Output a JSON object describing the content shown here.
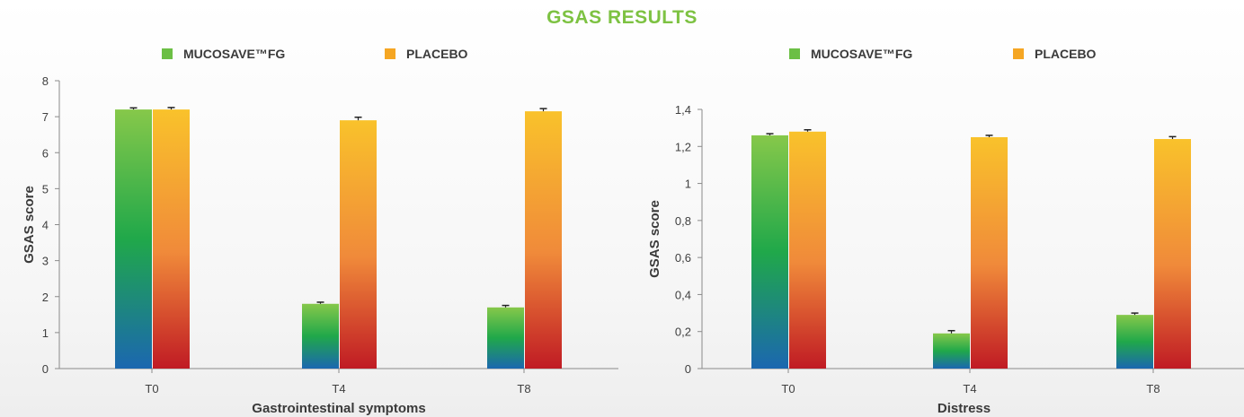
{
  "title": "GSAS RESULTS",
  "colors": {
    "title": "#7dc242",
    "mucosave_gradient": [
      "#86c84a",
      "#20a84a",
      "#1b67b0"
    ],
    "placebo_gradient": [
      "#f9c22b",
      "#f08a3a",
      "#c01b24"
    ],
    "axis": "#7f7f7f",
    "text": "#404040"
  },
  "chart_data": [
    {
      "type": "bar",
      "categories": [
        "T0",
        "T4",
        "T8"
      ],
      "series": [
        {
          "name": "MUCOSAVE™FG",
          "values": [
            7.2,
            1.8,
            1.7
          ],
          "errors": [
            0.02,
            0.02,
            0.03
          ]
        },
        {
          "name": "PLACEBO",
          "values": [
            7.2,
            6.9,
            7.15
          ],
          "errors": [
            0.03,
            0.06,
            0.05
          ]
        }
      ],
      "xlabel": "Gastrointestinal symptoms",
      "ylabel": "GSAS score",
      "ylim": [
        0,
        8
      ],
      "yticks": [
        "0",
        "1",
        "2",
        "3",
        "4",
        "5",
        "6",
        "7",
        "8"
      ],
      "grid": false,
      "legend": "top"
    },
    {
      "type": "bar",
      "categories": [
        "T0",
        "T4",
        "T8"
      ],
      "series": [
        {
          "name": "MUCOSAVE™FG",
          "values": [
            1.26,
            0.19,
            0.29
          ],
          "errors": [
            0.004,
            0.01,
            0.005
          ]
        },
        {
          "name": "PLACEBO",
          "values": [
            1.28,
            1.25,
            1.24
          ],
          "errors": [
            0.005,
            0.005,
            0.008
          ]
        }
      ],
      "xlabel": "Distress",
      "ylabel": "GSAS score",
      "ylim": [
        0,
        1.4
      ],
      "yticks": [
        "0",
        "0,2",
        "0,4",
        "0,6",
        "0,8",
        "1",
        "1,2",
        "1,4"
      ],
      "grid": false,
      "legend": "top"
    }
  ]
}
